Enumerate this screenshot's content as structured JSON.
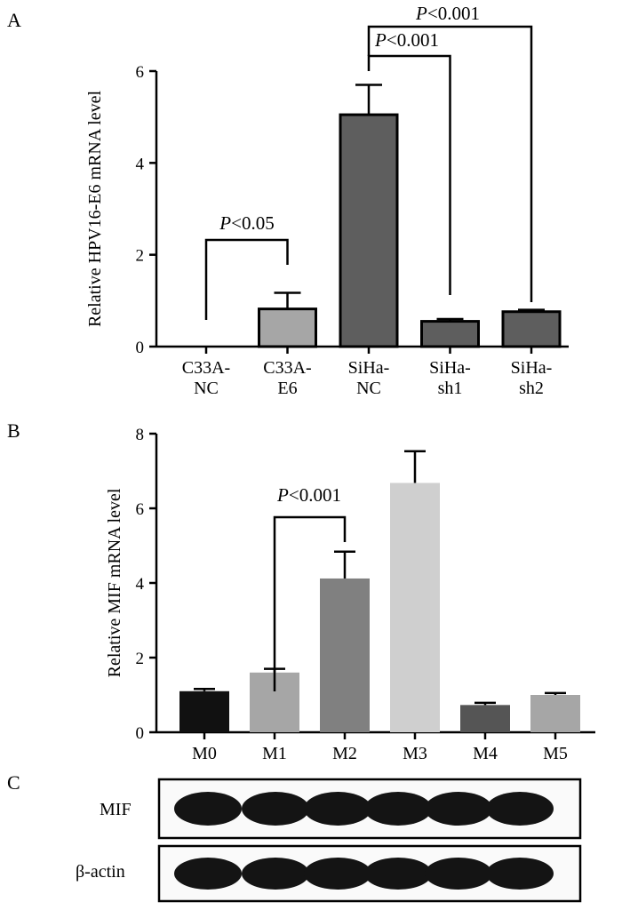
{
  "chart_data": [
    {
      "panel": "A",
      "type": "bar",
      "ylabel": "Relative HPV16-E6 mRNA level",
      "ylim": [
        0,
        6
      ],
      "yticks": [
        "0",
        "2",
        "4",
        "6"
      ],
      "categories": [
        [
          "C33A-",
          "NC"
        ],
        [
          "C33A-",
          "E6"
        ],
        [
          "SiHa-",
          "NC"
        ],
        [
          "SiHa-",
          "sh1"
        ],
        [
          "SiHa-",
          "sh2"
        ]
      ],
      "values": [
        0.0,
        0.82,
        5.05,
        0.55,
        0.76
      ],
      "errors": [
        0.0,
        0.35,
        0.65,
        0.05,
        0.04
      ],
      "colors": [
        "#555555",
        "#a6a6a6",
        "#5e5e5e",
        "#5e5e5e",
        "#5e5e5e"
      ],
      "annotations": [
        {
          "italic": "P",
          "text": "<0.05",
          "from": 0,
          "to": 1
        },
        {
          "italic": "P",
          "text": "<0.001",
          "from": 2,
          "to": 3
        },
        {
          "italic": "P",
          "text": "<0.001",
          "from": 2,
          "to": 4
        }
      ]
    },
    {
      "panel": "B",
      "type": "bar",
      "ylabel": "Relative MIF mRNA level",
      "ylim": [
        0,
        8
      ],
      "yticks": [
        "0",
        "2",
        "4",
        "6",
        "8"
      ],
      "categories": [
        "M0",
        "M1",
        "M2",
        "M3",
        "M4",
        "M5"
      ],
      "values": [
        1.1,
        1.6,
        4.12,
        6.68,
        0.73,
        1.0
      ],
      "errors": [
        0.06,
        0.1,
        0.72,
        0.85,
        0.06,
        0.05
      ],
      "colors": [
        "#111111",
        "#a6a6a6",
        "#808080",
        "#cfcfcf",
        "#555555",
        "#a6a6a6"
      ],
      "annotations": [
        {
          "italic": "P",
          "text": "<0.001",
          "from": 1,
          "to": 2
        }
      ]
    }
  ],
  "panel_c": {
    "letter": "C",
    "rows": [
      {
        "label": "MIF",
        "bands": 6
      },
      {
        "label": "β-actin",
        "bands": 6
      }
    ]
  }
}
